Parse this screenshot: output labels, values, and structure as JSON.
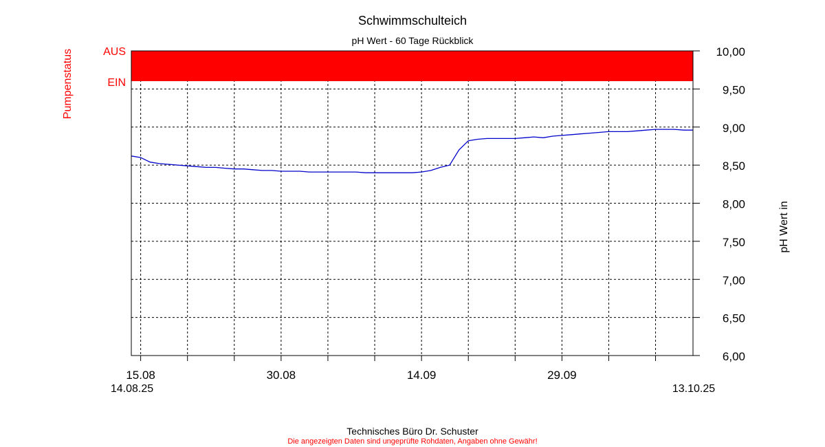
{
  "title": "Schwimmschulteich",
  "subtitle": "pH Wert - 60 Tage Rückblick",
  "footer": {
    "company": "Technisches Büro Dr. Schuster",
    "disclaimer": "Die angezeigten Daten sind ungeprüfte Rohdaten, Angaben ohne Gewähr!"
  },
  "colors": {
    "pump": "#ff0000",
    "line": "#0000cc",
    "text": "#000000"
  },
  "chart_data": {
    "type": "line",
    "title": "Schwimmschulteich",
    "subtitle": "pH Wert - 60 Tage Rückblick",
    "xlabel": "",
    "ylabel": "pH Wert in",
    "y2label": "Pumpenstatus",
    "ylim": [
      6.0,
      10.0
    ],
    "yticks": [
      "6,00",
      "6,50",
      "7,00",
      "7,50",
      "8,00",
      "8,50",
      "9,00",
      "9,50",
      "10,00"
    ],
    "pump_states": [
      "AUS",
      "EIN"
    ],
    "pump_status": {
      "state": "EIN",
      "from": "2025-08-14",
      "to": "2025-10-13"
    },
    "x_start": "14.08.25",
    "x_end": "13.10.25",
    "xtick_labels": [
      {
        "date": "2025-08-15",
        "label": "15.08"
      },
      {
        "date": "2025-08-30",
        "label": "30.08"
      },
      {
        "date": "2025-09-14",
        "label": "14.09"
      },
      {
        "date": "2025-09-29",
        "label": "29.09"
      }
    ],
    "grid": true,
    "series": [
      {
        "x": [
          "2025-08-14",
          "2025-08-15",
          "2025-08-16",
          "2025-08-17",
          "2025-08-18",
          "2025-08-19",
          "2025-08-20",
          "2025-08-21",
          "2025-08-22",
          "2025-08-23",
          "2025-08-24",
          "2025-08-25",
          "2025-08-26",
          "2025-08-27",
          "2025-08-28",
          "2025-08-29",
          "2025-08-30",
          "2025-08-31",
          "2025-09-01",
          "2025-09-02",
          "2025-09-03",
          "2025-09-04",
          "2025-09-05",
          "2025-09-06",
          "2025-09-07",
          "2025-09-08",
          "2025-09-09",
          "2025-09-10",
          "2025-09-11",
          "2025-09-12",
          "2025-09-13",
          "2025-09-14",
          "2025-09-15",
          "2025-09-16",
          "2025-09-17",
          "2025-09-18",
          "2025-09-19",
          "2025-09-20",
          "2025-09-21",
          "2025-09-22",
          "2025-09-23",
          "2025-09-24",
          "2025-09-25",
          "2025-09-26",
          "2025-09-27",
          "2025-09-28",
          "2025-09-29",
          "2025-09-30",
          "2025-10-01",
          "2025-10-02",
          "2025-10-03",
          "2025-10-04",
          "2025-10-05",
          "2025-10-06",
          "2025-10-07",
          "2025-10-08",
          "2025-10-09",
          "2025-10-10",
          "2025-10-11",
          "2025-10-12",
          "2025-10-13"
        ],
        "values": [
          8.62,
          8.6,
          8.54,
          8.52,
          8.51,
          8.5,
          8.49,
          8.48,
          8.47,
          8.47,
          8.46,
          8.45,
          8.45,
          8.44,
          8.43,
          8.43,
          8.42,
          8.42,
          8.42,
          8.41,
          8.41,
          8.41,
          8.41,
          8.41,
          8.41,
          8.4,
          8.4,
          8.4,
          8.4,
          8.4,
          8.4,
          8.41,
          8.43,
          8.47,
          8.5,
          8.7,
          8.82,
          8.84,
          8.85,
          8.85,
          8.85,
          8.85,
          8.86,
          8.87,
          8.86,
          8.88,
          8.89,
          8.9,
          8.91,
          8.92,
          8.93,
          8.94,
          8.94,
          8.94,
          8.95,
          8.96,
          8.97,
          8.97,
          8.97,
          8.96,
          8.96
        ]
      }
    ]
  }
}
